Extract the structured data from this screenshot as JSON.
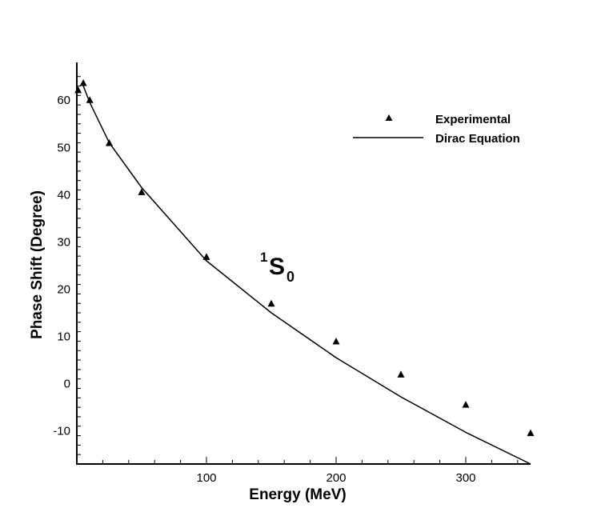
{
  "chart_data": {
    "type": "line",
    "xlabel": "Energy (MeV)",
    "ylabel": "Phase Shift (Degree)",
    "xlim": [
      0,
      350
    ],
    "ylim": [
      -17,
      68
    ],
    "x_ticks": [
      100,
      200,
      300
    ],
    "y_ticks": [
      -10,
      0,
      10,
      20,
      30,
      40,
      50,
      60
    ],
    "annotation": {
      "main": "S",
      "superscript": "1",
      "subscript": "0"
    },
    "legend": {
      "placement": "top-right"
    },
    "series": [
      {
        "name": "Experimental",
        "style": "scatter",
        "marker": "triangle",
        "color": "#000000",
        "x": [
          1,
          5,
          10,
          25,
          50,
          100,
          150,
          200,
          250,
          300,
          350
        ],
        "y": [
          62.1,
          63.6,
          60.0,
          50.9,
          40.5,
          26.8,
          16.9,
          8.9,
          1.9,
          -4.5,
          -10.5
        ]
      },
      {
        "name": "Dirac Equation",
        "style": "line",
        "color": "#000000",
        "x": [
          5,
          10,
          25,
          50,
          100,
          150,
          200,
          250,
          300,
          350
        ],
        "y": [
          63.0,
          59.5,
          51.0,
          41.5,
          26.0,
          15.0,
          5.5,
          -2.8,
          -10.3,
          -17.0
        ]
      }
    ]
  }
}
